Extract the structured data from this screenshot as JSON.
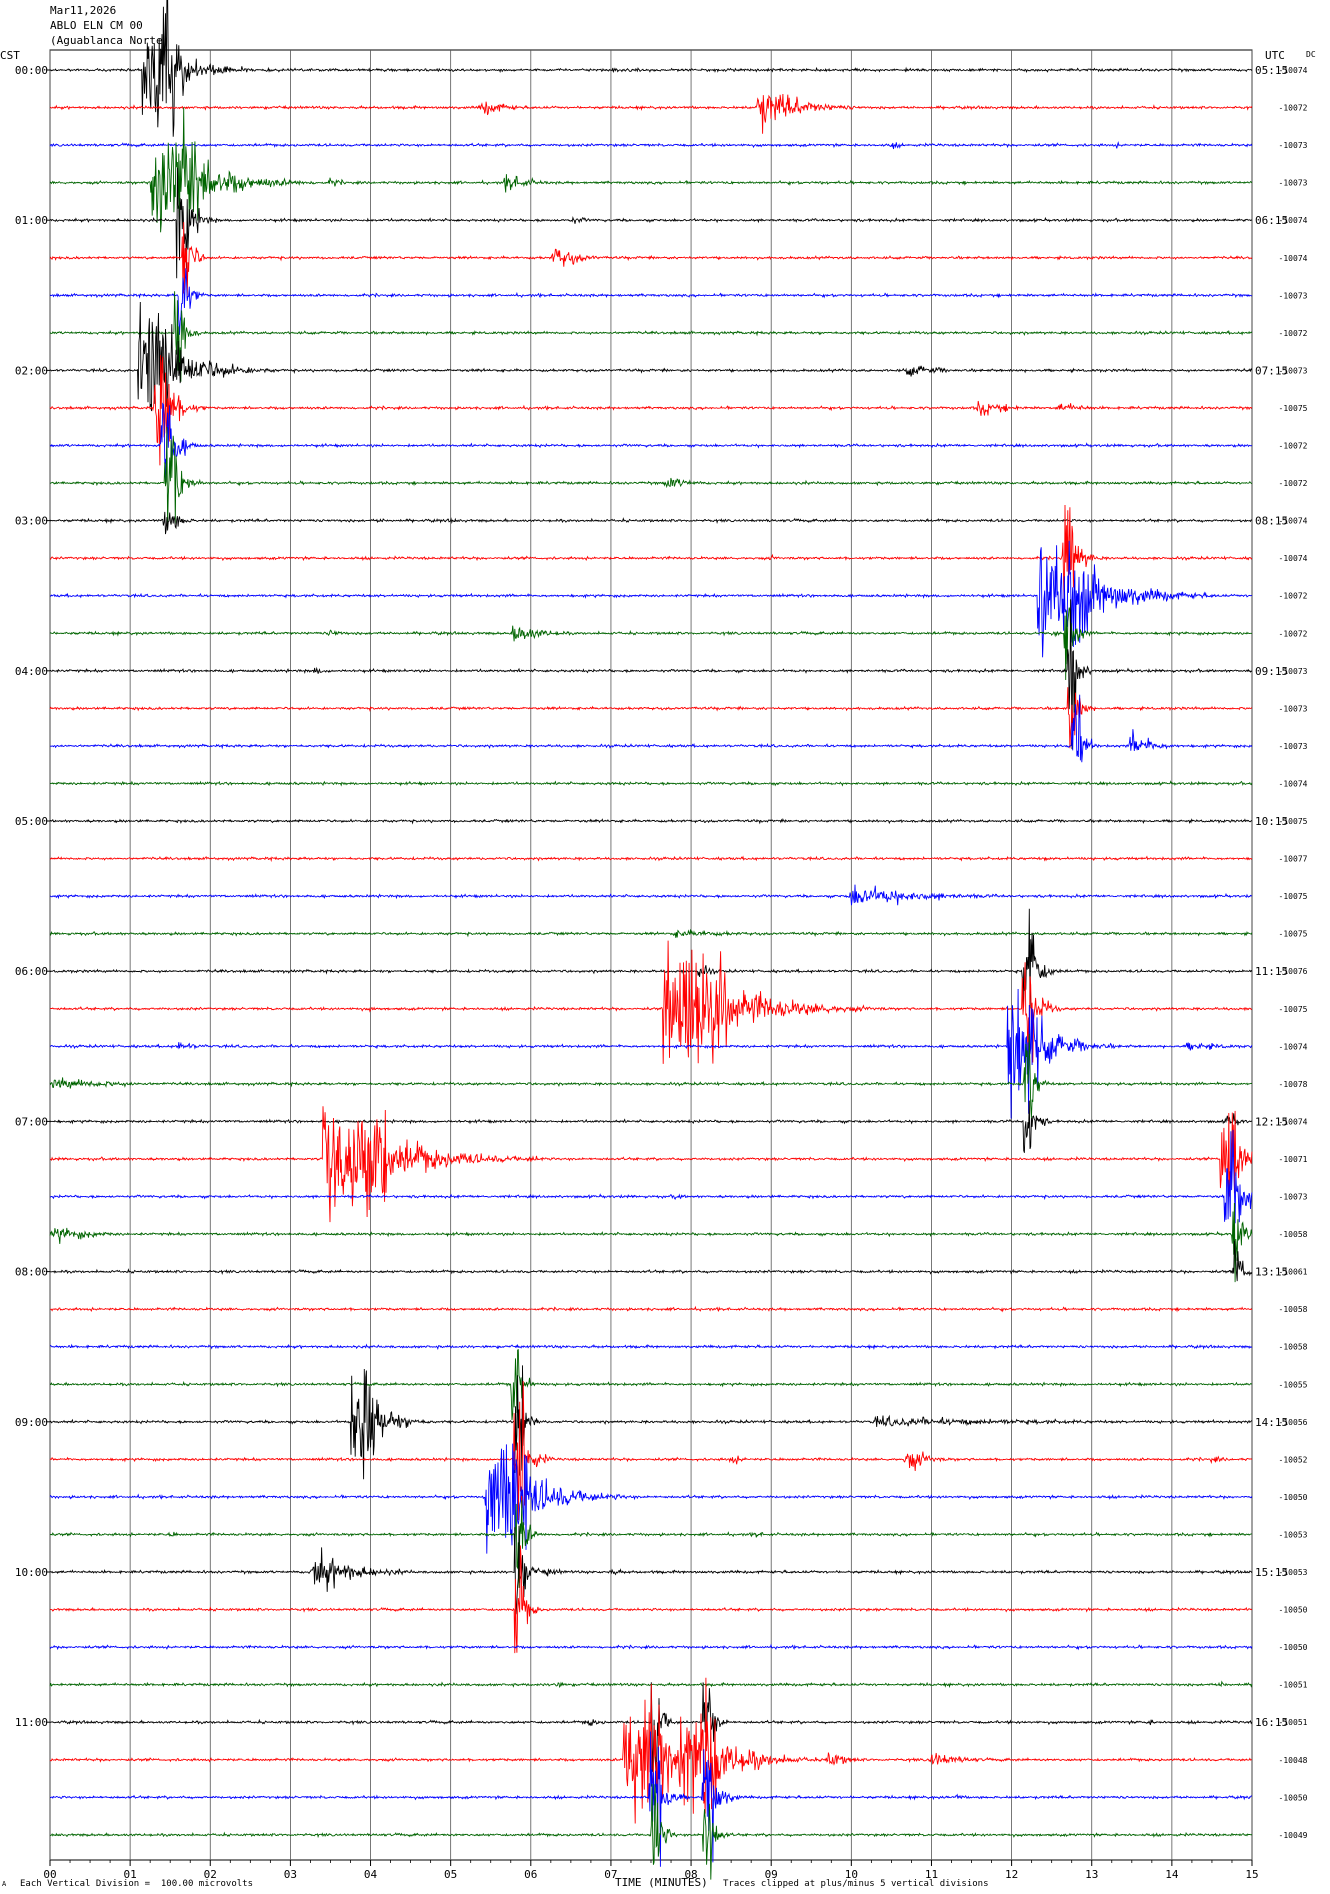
{
  "header": {
    "date": "Mar11,2026",
    "station": "ABLO ELN CM 00",
    "location": "(Aguablanca Norte)",
    "left_zone": "CST",
    "right_zone": "UTC",
    "dc_label": "DC"
  },
  "footer": {
    "scale_note": "Each Vertical Division =  100.00 microvolts",
    "x_axis_label": "TIME (MINUTES)",
    "clip_note": "Traces clipped at plus/minus 5 vertical divisions",
    "corner_mark": "A"
  },
  "colors": {
    "cycle": [
      "#000000",
      "#ff0000",
      "#0000ff",
      "#006400"
    ],
    "grid": "#000000"
  },
  "chart_data": {
    "type": "line",
    "title": "",
    "xlabel": "TIME (MINUTES)",
    "x_ticks": [
      "00",
      "01",
      "02",
      "03",
      "04",
      "05",
      "06",
      "07",
      "08",
      "09",
      "10",
      "11",
      "12",
      "13",
      "14",
      "15"
    ],
    "xlim": [
      0,
      15
    ],
    "left_hour_labels": [
      "00:00",
      "01:00",
      "02:00",
      "03:00",
      "04:00",
      "05:00",
      "06:00",
      "07:00",
      "08:00",
      "09:00",
      "10:00",
      "11:00"
    ],
    "right_hour_labels": [
      "05:15",
      "06:15",
      "07:15",
      "08:15",
      "09:15",
      "10:15",
      "11:15",
      "12:15",
      "13:15",
      "14:15",
      "15:15",
      "16:15"
    ],
    "dc_offsets": [
      "-10074",
      "-10072",
      "-10073",
      "-10073",
      "-10074",
      "-10074",
      "-10073",
      "-10072",
      "-10073",
      "-10075",
      "-10072",
      "-10072",
      "-10074",
      "-10074",
      "-10072",
      "-10072",
      "-10073",
      "-10073",
      "-10073",
      "-10074",
      "-10075",
      "-10077",
      "-10075",
      "-10075",
      "-10076",
      "-10075",
      "-10074",
      "-10078",
      "-10074",
      "-10071",
      "-10073",
      "-10058",
      "-10061",
      "-10058",
      "-10058",
      "-10055",
      "-10056",
      "-10052",
      "-10050",
      "-10053",
      "-10053",
      "-10050",
      "-10050",
      "-10051",
      "-10051",
      "-10048",
      "-10050",
      "-10049"
    ],
    "events": [
      {
        "trace": 0,
        "minute": 1.35,
        "amp": 5,
        "dur": 0.8,
        "clipped": true
      },
      {
        "trace": 0,
        "minute": 2.7,
        "amp": 0.3,
        "dur": 0.3
      },
      {
        "trace": 0,
        "minute": 7.0,
        "amp": 0.3,
        "dur": 0.3
      },
      {
        "trace": 1,
        "minute": 5.4,
        "amp": 1.0,
        "dur": 0.6
      },
      {
        "trace": 1,
        "minute": 8.85,
        "amp": 2.8,
        "dur": 1.0
      },
      {
        "trace": 2,
        "minute": 10.5,
        "amp": 0.4,
        "dur": 0.4
      },
      {
        "trace": 2,
        "minute": 13.3,
        "amp": 0.3,
        "dur": 0.3
      },
      {
        "trace": 3,
        "minute": 1.55,
        "amp": 5,
        "dur": 1.2,
        "clipped": true
      },
      {
        "trace": 3,
        "minute": 3.5,
        "amp": 0.5,
        "dur": 0.4
      },
      {
        "trace": 3,
        "minute": 5.7,
        "amp": 1.1,
        "dur": 0.6
      },
      {
        "trace": 3,
        "minute": 9.6,
        "amp": 0.3,
        "dur": 0.3
      },
      {
        "trace": 4,
        "minute": 1.65,
        "amp": 5,
        "dur": 0.3,
        "clipped": true
      },
      {
        "trace": 4,
        "minute": 6.5,
        "amp": 0.5,
        "dur": 0.5
      },
      {
        "trace": 5,
        "minute": 1.7,
        "amp": 5,
        "dur": 0.2,
        "clipped": true
      },
      {
        "trace": 5,
        "minute": 6.3,
        "amp": 1.5,
        "dur": 0.6
      },
      {
        "trace": 6,
        "minute": 1.65,
        "amp": 5,
        "dur": 0.2,
        "clipped": true
      },
      {
        "trace": 7,
        "minute": 1.6,
        "amp": 5,
        "dur": 0.2,
        "clipped": true
      },
      {
        "trace": 8,
        "minute": 1.35,
        "amp": 5,
        "dur": 1.0,
        "clipped": true
      },
      {
        "trace": 8,
        "minute": 2.3,
        "amp": 0.4,
        "dur": 0.4
      },
      {
        "trace": 8,
        "minute": 10.7,
        "amp": 0.8,
        "dur": 0.9
      },
      {
        "trace": 9,
        "minute": 1.4,
        "amp": 5,
        "dur": 0.4,
        "clipped": true
      },
      {
        "trace": 9,
        "minute": 11.6,
        "amp": 1.0,
        "dur": 0.7
      },
      {
        "trace": 9,
        "minute": 12.6,
        "amp": 0.6,
        "dur": 0.8
      },
      {
        "trace": 10,
        "minute": 1.45,
        "amp": 5,
        "dur": 0.3,
        "clipped": true
      },
      {
        "trace": 11,
        "minute": 1.5,
        "amp": 5,
        "dur": 0.3,
        "clipped": true
      },
      {
        "trace": 11,
        "minute": 7.7,
        "amp": 0.9,
        "dur": 0.6
      },
      {
        "trace": 12,
        "minute": 1.45,
        "amp": 2.5,
        "dur": 0.3
      },
      {
        "trace": 12,
        "minute": 4.1,
        "amp": 0.3,
        "dur": 0.3
      },
      {
        "trace": 12,
        "minute": 5.0,
        "amp": 0.3,
        "dur": 0.3
      },
      {
        "trace": 13,
        "minute": 9.0,
        "amp": 0.3,
        "dur": 0.3
      },
      {
        "trace": 13,
        "minute": 12.7,
        "amp": 5,
        "dur": 0.3,
        "clipped": true
      },
      {
        "trace": 14,
        "minute": 12.65,
        "amp": 5,
        "dur": 1.3,
        "clipped": true
      },
      {
        "trace": 15,
        "minute": 3.5,
        "amp": 0.5,
        "dur": 0.4
      },
      {
        "trace": 15,
        "minute": 5.8,
        "amp": 1.4,
        "dur": 0.7
      },
      {
        "trace": 15,
        "minute": 12.5,
        "amp": 0.5,
        "dur": 0.3
      },
      {
        "trace": 15,
        "minute": 12.7,
        "amp": 5,
        "dur": 0.2,
        "clipped": true
      },
      {
        "trace": 16,
        "minute": 3.3,
        "amp": 0.5,
        "dur": 0.4
      },
      {
        "trace": 16,
        "minute": 12.75,
        "amp": 5,
        "dur": 0.2,
        "clipped": true
      },
      {
        "trace": 17,
        "minute": 12.75,
        "amp": 5,
        "dur": 0.2,
        "clipped": true
      },
      {
        "trace": 18,
        "minute": 12.8,
        "amp": 5,
        "dur": 0.2,
        "clipped": true
      },
      {
        "trace": 18,
        "minute": 13.5,
        "amp": 1.6,
        "dur": 0.6
      },
      {
        "trace": 21,
        "minute": 12.4,
        "amp": 0.3,
        "dur": 0.3
      },
      {
        "trace": 22,
        "minute": 10.0,
        "amp": 1.4,
        "dur": 1.9
      },
      {
        "trace": 23,
        "minute": 7.8,
        "amp": 0.5,
        "dur": 1.8
      },
      {
        "trace": 24,
        "minute": 8.1,
        "amp": 1.0,
        "dur": 0.3
      },
      {
        "trace": 25,
        "minute": 8.05,
        "amp": 5,
        "dur": 1.6,
        "clipped": true
      },
      {
        "trace": 25,
        "minute": 4.0,
        "amp": 0.3,
        "dur": 0.3
      },
      {
        "trace": 24,
        "minute": 12.2,
        "amp": 5,
        "dur": 0.3,
        "clipped": true
      },
      {
        "trace": 25,
        "minute": 12.2,
        "amp": 5,
        "dur": 0.3,
        "clipped": true
      },
      {
        "trace": 26,
        "minute": 12.15,
        "amp": 5,
        "dur": 0.8,
        "clipped": true
      },
      {
        "trace": 26,
        "minute": 1.6,
        "amp": 0.6,
        "dur": 0.6
      },
      {
        "trace": 26,
        "minute": 14.2,
        "amp": 0.6,
        "dur": 1.0
      },
      {
        "trace": 27,
        "minute": 0.05,
        "amp": 0.7,
        "dur": 2.0
      },
      {
        "trace": 27,
        "minute": 12.2,
        "amp": 5,
        "dur": 0.2,
        "clipped": true
      },
      {
        "trace": 28,
        "minute": 12.2,
        "amp": 5,
        "dur": 0.2,
        "clipped": true
      },
      {
        "trace": 28,
        "minute": 14.7,
        "amp": 1.0,
        "dur": 0.3
      },
      {
        "trace": 29,
        "minute": 3.8,
        "amp": 5,
        "dur": 1.6,
        "clipped": true
      },
      {
        "trace": 29,
        "minute": 6.0,
        "amp": 0.5,
        "dur": 0.4
      },
      {
        "trace": 29,
        "minute": 14.7,
        "amp": 5,
        "dur": 0.4,
        "clipped": true
      },
      {
        "trace": 30,
        "minute": 7.8,
        "amp": 0.4,
        "dur": 0.3
      },
      {
        "trace": 30,
        "minute": 14.75,
        "amp": 5,
        "dur": 0.4,
        "clipped": true
      },
      {
        "trace": 31,
        "minute": 0.05,
        "amp": 1.0,
        "dur": 1.0
      },
      {
        "trace": 31,
        "minute": 14.8,
        "amp": 5,
        "dur": 0.2,
        "clipped": true
      },
      {
        "trace": 32,
        "minute": 14.8,
        "amp": 4,
        "dur": 0.2
      },
      {
        "trace": 35,
        "minute": 5.8,
        "amp": 5,
        "dur": 0.2,
        "clipped": true
      },
      {
        "trace": 36,
        "minute": 3.9,
        "amp": 5,
        "dur": 0.6,
        "clipped": true
      },
      {
        "trace": 36,
        "minute": 5.85,
        "amp": 5,
        "dur": 0.2,
        "clipped": true
      },
      {
        "trace": 36,
        "minute": 10.3,
        "amp": 0.6,
        "dur": 4.7
      },
      {
        "trace": 37,
        "minute": 5.85,
        "amp": 5,
        "dur": 0.3,
        "clipped": true
      },
      {
        "trace": 37,
        "minute": 8.5,
        "amp": 0.6,
        "dur": 0.4
      },
      {
        "trace": 37,
        "minute": 10.7,
        "amp": 1.6,
        "dur": 0.5
      },
      {
        "trace": 37,
        "minute": 14.5,
        "amp": 0.4,
        "dur": 0.5
      },
      {
        "trace": 38,
        "minute": 5.7,
        "amp": 5,
        "dur": 1.1,
        "clipped": true
      },
      {
        "trace": 38,
        "minute": 6.9,
        "amp": 0.6,
        "dur": 0.3
      },
      {
        "trace": 39,
        "minute": 1.5,
        "amp": 0.4,
        "dur": 0.3
      },
      {
        "trace": 39,
        "minute": 5.85,
        "amp": 5,
        "dur": 0.2,
        "clipped": true
      },
      {
        "trace": 39,
        "minute": 8.8,
        "amp": 0.4,
        "dur": 0.3
      },
      {
        "trace": 40,
        "minute": 3.3,
        "amp": 2.6,
        "dur": 1.0
      },
      {
        "trace": 40,
        "minute": 5.85,
        "amp": 5,
        "dur": 0.2,
        "clipped": true
      },
      {
        "trace": 40,
        "minute": 6.2,
        "amp": 0.6,
        "dur": 0.4
      },
      {
        "trace": 40,
        "minute": 7.0,
        "amp": 0.4,
        "dur": 0.4
      },
      {
        "trace": 41,
        "minute": 5.85,
        "amp": 5,
        "dur": 0.2,
        "clipped": true
      },
      {
        "trace": 43,
        "minute": 6.3,
        "amp": 0.5,
        "dur": 0.3
      },
      {
        "trace": 43,
        "minute": 14.6,
        "amp": 0.4,
        "dur": 0.3
      },
      {
        "trace": 44,
        "minute": 6.7,
        "amp": 0.6,
        "dur": 0.4
      },
      {
        "trace": 44,
        "minute": 7.55,
        "amp": 5,
        "dur": 0.2,
        "clipped": true
      },
      {
        "trace": 44,
        "minute": 8.2,
        "amp": 5,
        "dur": 0.2,
        "clipped": true
      },
      {
        "trace": 44,
        "minute": 13.7,
        "amp": 0.4,
        "dur": 0.3
      },
      {
        "trace": 45,
        "minute": 7.4,
        "amp": 5,
        "dur": 1.0,
        "clipped": true
      },
      {
        "trace": 45,
        "minute": 8.1,
        "amp": 5,
        "dur": 1.0,
        "clipped": true
      },
      {
        "trace": 45,
        "minute": 9.7,
        "amp": 1.2,
        "dur": 0.5
      },
      {
        "trace": 45,
        "minute": 11.0,
        "amp": 1.0,
        "dur": 0.8
      },
      {
        "trace": 46,
        "minute": 7.55,
        "amp": 5,
        "dur": 0.3,
        "clipped": true
      },
      {
        "trace": 46,
        "minute": 8.2,
        "amp": 5,
        "dur": 0.3,
        "clipped": true
      },
      {
        "trace": 46,
        "minute": 11.3,
        "amp": 0.4,
        "dur": 0.3
      },
      {
        "trace": 47,
        "minute": 7.55,
        "amp": 5,
        "dur": 0.2,
        "clipped": true
      },
      {
        "trace": 47,
        "minute": 8.2,
        "amp": 5,
        "dur": 0.2,
        "clipped": true
      }
    ]
  }
}
